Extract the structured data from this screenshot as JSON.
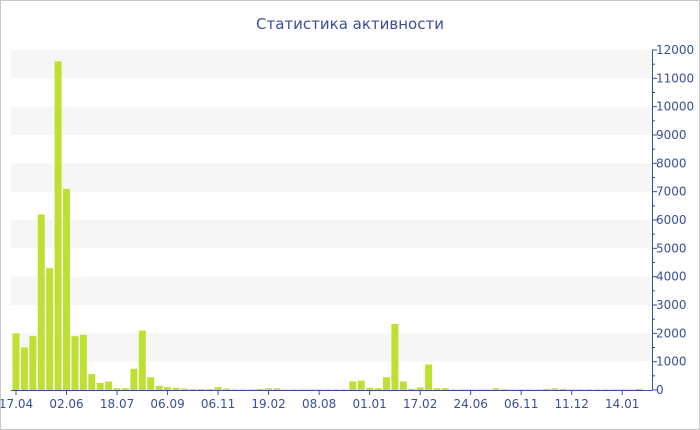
{
  "chart_data": {
    "type": "bar",
    "title": "Статистика активности",
    "xlabel": "",
    "ylabel": "",
    "ylim": [
      0,
      12000
    ],
    "y_ticks": [
      0,
      1000,
      2000,
      3000,
      4000,
      5000,
      6000,
      7000,
      8000,
      9000,
      10000,
      11000,
      12000
    ],
    "y_axis_position": "right",
    "x_tick_labels": [
      "17.04",
      "02.06",
      "18.07",
      "06.09",
      "06.11",
      "19.02",
      "08.08",
      "01.01",
      "17.02",
      "24.06",
      "06.11",
      "11.12",
      "14.01"
    ],
    "x_tick_every_n_bars": 6,
    "grid": "alternating horizontal bands",
    "colors": {
      "bar": "#bde032",
      "axis": "#3a4f9a",
      "band": "#f6f6f6"
    },
    "values": [
      2000,
      1500,
      1900,
      6200,
      4300,
      11600,
      7100,
      1900,
      1950,
      560,
      250,
      300,
      60,
      60,
      750,
      2100,
      450,
      150,
      100,
      80,
      50,
      30,
      30,
      30,
      100,
      50,
      20,
      20,
      20,
      40,
      60,
      60,
      20,
      20,
      20,
      20,
      20,
      20,
      20,
      20,
      300,
      330,
      80,
      60,
      450,
      2330,
      300,
      40,
      90,
      900,
      60,
      60,
      20,
      20,
      20,
      20,
      20,
      60,
      30,
      20,
      20,
      20,
      20,
      40,
      60,
      40,
      20,
      20,
      20,
      20,
      20,
      20,
      20,
      20,
      40
    ]
  }
}
